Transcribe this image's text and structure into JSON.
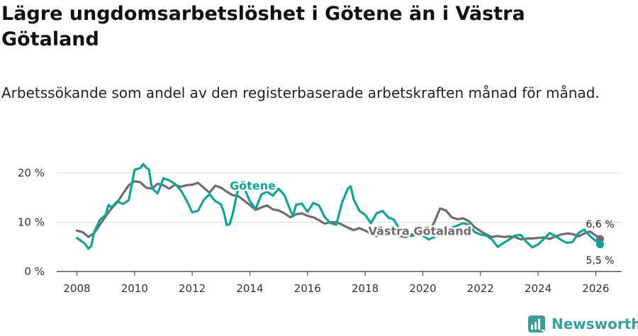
{
  "header": {
    "title": "Lägre ungdomsarbetslöshet i Götene än i Västra Götaland",
    "subtitle": "Arbetssökande som andel av den registerbaserade arbetskraften månad för månad."
  },
  "brand": {
    "name": "Newsworthy",
    "icon": "newsworthy-logo-icon"
  },
  "colors": {
    "gotene": "#12a195",
    "vg": "#6e6c6e",
    "grid": "#d9d9d9",
    "axis": "#333333"
  },
  "chart_data": {
    "type": "line",
    "title": "Lägre ungdomsarbetslöshet i Götene än i Västra Götaland",
    "xlabel": "",
    "ylabel": "",
    "xlim": [
      2007.3,
      2026.9
    ],
    "ylim": [
      0,
      20
    ],
    "x_ticks": [
      2008,
      2010,
      2012,
      2014,
      2016,
      2018,
      2020,
      2022,
      2024,
      2026
    ],
    "y_ticks": [
      0,
      10,
      20
    ],
    "y_tick_labels": [
      "0 %",
      "10 %",
      "20 %"
    ],
    "grid": true,
    "series": [
      {
        "name": "Västra Götaland",
        "label": "Västra Götaland",
        "end_label": "6,6 %",
        "points": [
          [
            2008.0,
            8.3
          ],
          [
            2008.2,
            8.0
          ],
          [
            2008.4,
            7.0
          ],
          [
            2008.6,
            7.8
          ],
          [
            2008.8,
            9.5
          ],
          [
            2009.0,
            11.2
          ],
          [
            2009.2,
            12.8
          ],
          [
            2009.4,
            14.0
          ],
          [
            2009.6,
            15.8
          ],
          [
            2009.8,
            17.5
          ],
          [
            2010.0,
            18.3
          ],
          [
            2010.2,
            18.1
          ],
          [
            2010.4,
            17.0
          ],
          [
            2010.6,
            16.8
          ],
          [
            2010.8,
            17.8
          ],
          [
            2011.0,
            17.5
          ],
          [
            2011.2,
            16.8
          ],
          [
            2011.4,
            17.6
          ],
          [
            2011.6,
            17.2
          ],
          [
            2011.8,
            17.5
          ],
          [
            2012.0,
            17.6
          ],
          [
            2012.2,
            18.0
          ],
          [
            2012.4,
            17.0
          ],
          [
            2012.6,
            16.0
          ],
          [
            2012.8,
            17.4
          ],
          [
            2013.0,
            17.0
          ],
          [
            2013.2,
            16.2
          ],
          [
            2013.4,
            15.5
          ],
          [
            2013.6,
            15.3
          ],
          [
            2013.8,
            14.4
          ],
          [
            2014.0,
            13.5
          ],
          [
            2014.2,
            12.5
          ],
          [
            2014.4,
            13.0
          ],
          [
            2014.6,
            13.4
          ],
          [
            2014.8,
            12.6
          ],
          [
            2015.0,
            12.4
          ],
          [
            2015.2,
            11.8
          ],
          [
            2015.4,
            11.0
          ],
          [
            2015.6,
            11.6
          ],
          [
            2015.8,
            11.8
          ],
          [
            2016.0,
            11.3
          ],
          [
            2016.2,
            11.0
          ],
          [
            2016.4,
            10.4
          ],
          [
            2016.6,
            9.7
          ],
          [
            2016.8,
            10.0
          ],
          [
            2017.0,
            10.0
          ],
          [
            2017.2,
            9.5
          ],
          [
            2017.4,
            8.9
          ],
          [
            2017.6,
            8.4
          ],
          [
            2017.8,
            8.8
          ],
          [
            2018.0,
            8.3
          ],
          [
            2018.2,
            7.7
          ],
          [
            2018.4,
            7.2
          ],
          [
            2018.6,
            7.5
          ],
          [
            2018.8,
            7.6
          ],
          [
            2019.0,
            7.4
          ],
          [
            2019.2,
            7.2
          ],
          [
            2019.4,
            7.0
          ],
          [
            2019.6,
            7.5
          ],
          [
            2019.8,
            7.8
          ],
          [
            2020.0,
            7.8
          ],
          [
            2020.2,
            8.0
          ],
          [
            2020.4,
            10.0
          ],
          [
            2020.6,
            12.8
          ],
          [
            2020.8,
            12.4
          ],
          [
            2021.0,
            11.0
          ],
          [
            2021.2,
            10.6
          ],
          [
            2021.4,
            10.8
          ],
          [
            2021.6,
            10.2
          ],
          [
            2021.8,
            9.0
          ],
          [
            2022.0,
            8.2
          ],
          [
            2022.2,
            7.5
          ],
          [
            2022.4,
            7.0
          ],
          [
            2022.6,
            7.2
          ],
          [
            2022.8,
            7.0
          ],
          [
            2023.0,
            7.1
          ],
          [
            2023.2,
            7.0
          ],
          [
            2023.4,
            6.5
          ],
          [
            2023.6,
            6.7
          ],
          [
            2023.8,
            6.7
          ],
          [
            2024.0,
            6.8
          ],
          [
            2024.2,
            6.9
          ],
          [
            2024.4,
            6.6
          ],
          [
            2024.6,
            7.1
          ],
          [
            2024.8,
            7.5
          ],
          [
            2025.0,
            7.7
          ],
          [
            2025.2,
            7.6
          ],
          [
            2025.4,
            7.1
          ],
          [
            2025.6,
            7.7
          ],
          [
            2025.8,
            8.1
          ],
          [
            2026.0,
            7.3
          ],
          [
            2026.15,
            6.6
          ]
        ]
      },
      {
        "name": "Götene",
        "label": "Götene",
        "end_label": "5,5 %",
        "points": [
          [
            2008.0,
            6.8
          ],
          [
            2008.2,
            6.0
          ],
          [
            2008.3,
            5.5
          ],
          [
            2008.4,
            4.6
          ],
          [
            2008.5,
            5.2
          ],
          [
            2008.6,
            8.0
          ],
          [
            2008.8,
            10.5
          ],
          [
            2009.0,
            11.5
          ],
          [
            2009.1,
            13.5
          ],
          [
            2009.2,
            13.0
          ],
          [
            2009.4,
            14.2
          ],
          [
            2009.6,
            13.7
          ],
          [
            2009.8,
            14.5
          ],
          [
            2010.0,
            20.6
          ],
          [
            2010.1,
            20.8
          ],
          [
            2010.2,
            21.0
          ],
          [
            2010.3,
            21.8
          ],
          [
            2010.4,
            21.1
          ],
          [
            2010.5,
            20.7
          ],
          [
            2010.6,
            17.0
          ],
          [
            2010.8,
            15.8
          ],
          [
            2011.0,
            18.9
          ],
          [
            2011.2,
            18.5
          ],
          [
            2011.4,
            17.8
          ],
          [
            2011.6,
            16.5
          ],
          [
            2011.8,
            14.5
          ],
          [
            2012.0,
            12.0
          ],
          [
            2012.2,
            12.3
          ],
          [
            2012.4,
            14.5
          ],
          [
            2012.6,
            15.7
          ],
          [
            2012.8,
            14.3
          ],
          [
            2013.0,
            13.6
          ],
          [
            2013.1,
            12.0
          ],
          [
            2013.2,
            9.4
          ],
          [
            2013.3,
            9.6
          ],
          [
            2013.4,
            11.5
          ],
          [
            2013.6,
            17.0
          ],
          [
            2013.7,
            18.2
          ],
          [
            2013.8,
            17.0
          ],
          [
            2014.0,
            14.3
          ],
          [
            2014.2,
            12.7
          ],
          [
            2014.4,
            15.6
          ],
          [
            2014.6,
            16.2
          ],
          [
            2014.8,
            15.4
          ],
          [
            2015.0,
            16.8
          ],
          [
            2015.2,
            15.5
          ],
          [
            2015.4,
            12.5
          ],
          [
            2015.5,
            11.2
          ],
          [
            2015.6,
            13.5
          ],
          [
            2015.8,
            13.8
          ],
          [
            2016.0,
            12.1
          ],
          [
            2016.2,
            13.9
          ],
          [
            2016.4,
            13.4
          ],
          [
            2016.6,
            11.0
          ],
          [
            2016.8,
            9.8
          ],
          [
            2017.0,
            9.5
          ],
          [
            2017.2,
            14.0
          ],
          [
            2017.4,
            16.8
          ],
          [
            2017.5,
            17.3
          ],
          [
            2017.6,
            14.7
          ],
          [
            2017.8,
            12.3
          ],
          [
            2018.0,
            11.5
          ],
          [
            2018.2,
            9.8
          ],
          [
            2018.4,
            11.8
          ],
          [
            2018.6,
            12.3
          ],
          [
            2018.8,
            11.0
          ],
          [
            2019.0,
            10.5
          ],
          [
            2019.2,
            8.5
          ],
          [
            2019.4,
            7.5
          ],
          [
            2019.6,
            7.2
          ],
          [
            2019.8,
            7.5
          ],
          [
            2020.0,
            7.3
          ],
          [
            2020.2,
            6.5
          ],
          [
            2020.4,
            7.0
          ],
          [
            2020.6,
            8.0
          ],
          [
            2020.8,
            8.5
          ],
          [
            2021.0,
            8.9
          ],
          [
            2021.2,
            9.3
          ],
          [
            2021.4,
            9.8
          ],
          [
            2021.6,
            9.5
          ],
          [
            2021.8,
            8.0
          ],
          [
            2022.0,
            7.5
          ],
          [
            2022.2,
            7.3
          ],
          [
            2022.4,
            6.5
          ],
          [
            2022.6,
            5.0
          ],
          [
            2022.8,
            5.8
          ],
          [
            2023.0,
            6.5
          ],
          [
            2023.2,
            7.3
          ],
          [
            2023.4,
            7.4
          ],
          [
            2023.6,
            6.0
          ],
          [
            2023.8,
            4.9
          ],
          [
            2024.0,
            5.5
          ],
          [
            2024.2,
            6.6
          ],
          [
            2024.4,
            7.8
          ],
          [
            2024.6,
            7.2
          ],
          [
            2024.8,
            6.4
          ],
          [
            2025.0,
            5.8
          ],
          [
            2025.2,
            6.0
          ],
          [
            2025.4,
            7.8
          ],
          [
            2025.6,
            8.5
          ],
          [
            2025.8,
            7.2
          ],
          [
            2026.0,
            6.2
          ],
          [
            2026.15,
            5.5
          ]
        ]
      }
    ]
  }
}
